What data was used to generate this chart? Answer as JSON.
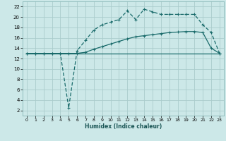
{
  "title": "",
  "xlabel": "Humidex (Indice chaleur)",
  "bg_color": "#cce8e8",
  "grid_color": "#aacccc",
  "line_color": "#1a6b6b",
  "xlim": [
    -0.5,
    23.5
  ],
  "ylim": [
    1,
    23
  ],
  "xticks": [
    0,
    1,
    2,
    3,
    4,
    5,
    6,
    7,
    8,
    9,
    10,
    11,
    12,
    13,
    14,
    15,
    16,
    17,
    18,
    19,
    20,
    21,
    22,
    23
  ],
  "yticks": [
    2,
    4,
    6,
    8,
    10,
    12,
    14,
    16,
    18,
    20,
    22
  ],
  "line1_x": [
    0,
    1,
    2,
    3,
    4,
    5,
    6,
    7,
    8,
    9,
    10,
    11,
    12,
    13,
    14,
    15,
    16,
    17,
    18,
    19,
    20,
    21,
    22,
    23
  ],
  "line1_y": [
    13,
    13,
    13,
    13,
    13,
    13,
    13,
    13,
    13,
    13,
    13,
    13,
    13,
    13,
    13,
    13,
    13,
    13,
    13,
    13,
    13,
    13,
    13,
    13
  ],
  "line2_x": [
    0,
    1,
    2,
    3,
    4,
    5,
    6,
    7,
    8,
    9,
    10,
    11,
    12,
    13,
    14,
    15,
    16,
    17,
    18,
    19,
    20,
    21,
    22,
    23
  ],
  "line2_y": [
    13,
    13,
    13,
    13,
    13,
    13,
    13,
    13.2,
    13.8,
    14.3,
    14.8,
    15.3,
    15.8,
    16.2,
    16.4,
    16.6,
    16.8,
    17.0,
    17.1,
    17.2,
    17.2,
    17.0,
    14.0,
    13.0
  ],
  "line3_x": [
    0,
    1,
    2,
    3,
    4,
    5,
    6,
    7,
    8,
    9,
    10,
    11,
    12,
    13,
    14,
    15,
    16,
    17,
    18,
    19,
    20,
    21,
    22,
    23
  ],
  "line3_y": [
    13,
    13,
    13,
    13,
    13,
    2.5,
    13.5,
    15.5,
    17.5,
    18.5,
    19.0,
    19.5,
    21.2,
    19.5,
    21.5,
    21.0,
    20.5,
    20.5,
    20.5,
    20.5,
    20.5,
    18.5,
    17.0,
    13.0
  ]
}
